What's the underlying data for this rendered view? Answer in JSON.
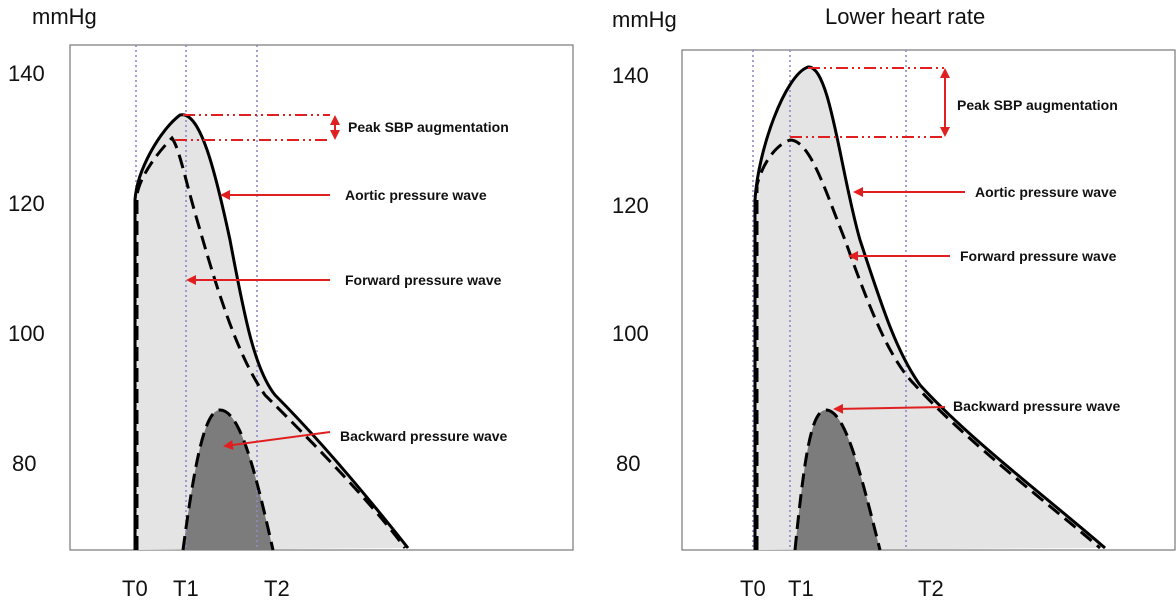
{
  "left_panel": {
    "unit_label": "mmHg",
    "y_ticks": [
      "140",
      "120",
      "100",
      "80"
    ],
    "time_labels": [
      "T0",
      "T1",
      "T2"
    ],
    "annotations": {
      "peak": "Peak SBP augmentation",
      "aortic": "Aortic pressure wave",
      "forward": "Forward pressure wave",
      "backward": "Backward pressure wave"
    }
  },
  "right_panel": {
    "unit_label": "mmHg",
    "title": "Lower heart rate",
    "y_ticks": [
      "140",
      "120",
      "100",
      "80"
    ],
    "time_labels": [
      "T0",
      "T1",
      "T2"
    ],
    "annotations": {
      "peak": "Peak SBP augmentation",
      "aortic": "Aortic pressure wave",
      "forward": "Forward pressure wave",
      "backward": "Backward pressure wave"
    }
  }
}
